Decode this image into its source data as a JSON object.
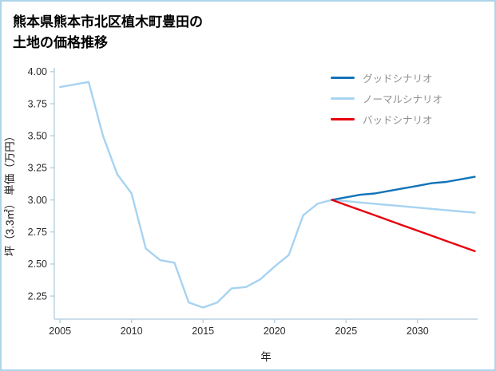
{
  "page": {
    "title_lines": [
      "熊本県熊本市北区植木町豊田の",
      "土地の価格推移"
    ]
  },
  "chart_data": {
    "type": "line",
    "title": "熊本県熊本市北区植木町豊田の土地の価格推移",
    "xlabel": "年",
    "ylabel": "坪（3.3㎡） 単価（万円）",
    "xlim": [
      2004.6,
      2034.2
    ],
    "ylim": [
      2.07,
      4.03
    ],
    "xticks": [
      "2005",
      "2010",
      "2015",
      "2020",
      "2025",
      "2030"
    ],
    "yticks": [
      "2.25",
      "2.50",
      "2.75",
      "3.00",
      "3.25",
      "3.50",
      "3.75",
      "4.00"
    ],
    "grid": false,
    "legend_position": "top-right",
    "axis_color": "#bcd2e2",
    "tick_label_color": "#2b2b2b",
    "legend_text_color": "#8e8e8e",
    "series": [
      {
        "name": "グッドシナリオ",
        "color": "#1273b9",
        "x": [
          2024,
          2025,
          2026,
          2027,
          2028,
          2029,
          2030,
          2031,
          2032,
          2033,
          2034
        ],
        "y": [
          3.0,
          3.02,
          3.04,
          3.05,
          3.07,
          3.09,
          3.11,
          3.13,
          3.14,
          3.16,
          3.18
        ]
      },
      {
        "name": "ノーマルシナリオ",
        "color": "#a7d3f1",
        "x": [
          2005,
          2006,
          2007,
          2008,
          2009,
          2010,
          2011,
          2012,
          2013,
          2014,
          2015,
          2016,
          2017,
          2018,
          2019,
          2020,
          2021,
          2022,
          2023,
          2024,
          2025,
          2026,
          2027,
          2028,
          2029,
          2030,
          2031,
          2032,
          2033,
          2034
        ],
        "y": [
          3.88,
          3.9,
          3.92,
          3.5,
          3.2,
          3.05,
          2.62,
          2.53,
          2.51,
          2.2,
          2.16,
          2.2,
          2.31,
          2.32,
          2.38,
          2.48,
          2.57,
          2.88,
          2.97,
          3.0,
          2.99,
          2.98,
          2.97,
          2.96,
          2.95,
          2.94,
          2.93,
          2.92,
          2.91,
          2.9
        ]
      },
      {
        "name": "バッドシナリオ",
        "color": "#e8000d",
        "x": [
          2024,
          2025,
          2026,
          2027,
          2028,
          2029,
          2030,
          2031,
          2032,
          2033,
          2034
        ],
        "y": [
          3.0,
          2.96,
          2.92,
          2.88,
          2.84,
          2.8,
          2.76,
          2.72,
          2.68,
          2.64,
          2.6
        ]
      }
    ]
  }
}
